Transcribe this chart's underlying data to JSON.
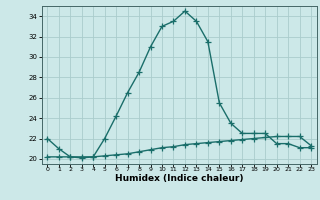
{
  "title": "",
  "xlabel": "Humidex (Indice chaleur)",
  "ylabel": "",
  "background_color": "#cce8e8",
  "grid_color": "#aacccc",
  "line_color": "#1a6e6a",
  "xlim": [
    -0.5,
    23.5
  ],
  "ylim": [
    19.5,
    35.0
  ],
  "yticks": [
    20,
    22,
    24,
    26,
    28,
    30,
    32,
    34
  ],
  "xticks": [
    0,
    1,
    2,
    3,
    4,
    5,
    6,
    7,
    8,
    9,
    10,
    11,
    12,
    13,
    14,
    15,
    16,
    17,
    18,
    19,
    20,
    21,
    22,
    23
  ],
  "series1_x": [
    0,
    1,
    2,
    3,
    4,
    5,
    6,
    7,
    8,
    9,
    10,
    11,
    12,
    13,
    14,
    15,
    16,
    17,
    18,
    19,
    20,
    21,
    22,
    23
  ],
  "series1_y": [
    22,
    21,
    20.2,
    20.1,
    20.2,
    22,
    24.2,
    26.5,
    28.5,
    31.0,
    33.0,
    33.5,
    34.5,
    33.5,
    31.5,
    25.5,
    23.5,
    22.5,
    22.5,
    22.5,
    21.5,
    21.5,
    21.1,
    21.1
  ],
  "series2_x": [
    0,
    1,
    2,
    3,
    4,
    5,
    6,
    7,
    8,
    9,
    10,
    11,
    12,
    13,
    14,
    15,
    16,
    17,
    18,
    19,
    20,
    21,
    22,
    23
  ],
  "series2_y": [
    20.2,
    20.2,
    20.2,
    20.2,
    20.2,
    20.3,
    20.4,
    20.5,
    20.7,
    20.9,
    21.1,
    21.2,
    21.4,
    21.5,
    21.6,
    21.7,
    21.8,
    21.9,
    22.0,
    22.1,
    22.2,
    22.2,
    22.2,
    21.3
  ],
  "marker": "+",
  "markersize": 4,
  "linewidth": 1.0
}
